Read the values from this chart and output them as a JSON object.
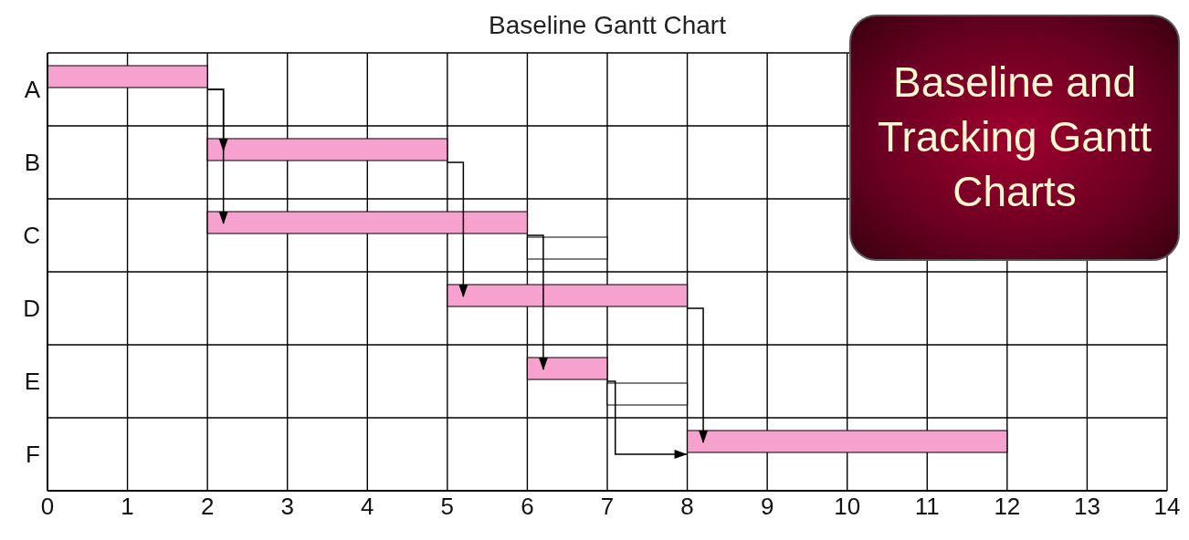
{
  "chart_data": {
    "type": "bar",
    "orientation": "horizontal",
    "title": "Baseline Gantt Chart",
    "categories": [
      "A",
      "B",
      "C",
      "D",
      "E",
      "F"
    ],
    "series": [
      {
        "color": "#f7a1cf",
        "base": [
          0,
          2,
          2,
          5,
          6,
          8
        ],
        "values": [
          2,
          3,
          4,
          3,
          1,
          4
        ]
      },
      {
        "color": "#ffffff",
        "base": [
          null,
          null,
          6,
          null,
          7,
          null
        ],
        "values": [
          null,
          null,
          1,
          null,
          1,
          null
        ]
      }
    ],
    "xlim": [
      0,
      14
    ],
    "xticks": [
      0,
      1,
      2,
      3,
      4,
      5,
      6,
      7,
      8,
      9,
      10,
      11,
      12,
      13,
      14
    ],
    "grid": true,
    "annotations": [
      "Baseline and Tracking Gantt Charts"
    ]
  }
}
